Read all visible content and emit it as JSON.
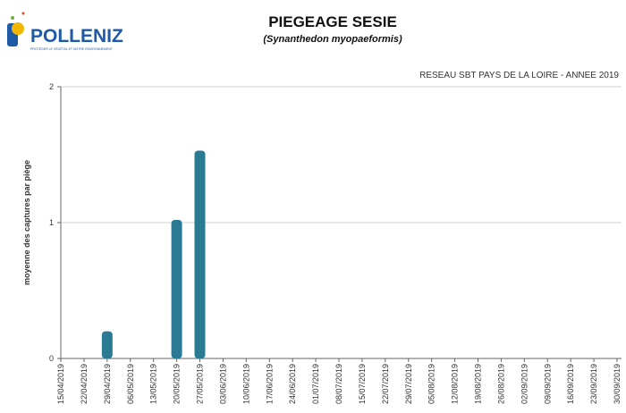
{
  "logo": {
    "name": "POLLENIZ",
    "tagline": "PROTÉGER LE VÉGÉTAL ET NOTRE ENVIRONNEMENT"
  },
  "chart_data": {
    "type": "bar",
    "title": "PIEGEAGE SESIE",
    "subtitle": "(Synanthedon myopaeformis)",
    "annotation": "RESEAU SBT PAYS DE LA LOIRE - ANNEE 2019",
    "y_label": "moyenne des captures par piège",
    "categories": [
      "15/04/2019",
      "22/04/2019",
      "29/04/2019",
      "06/05/2019",
      "13/05/2019",
      "20/05/2019",
      "27/05/2019",
      "03/06/2019",
      "10/06/2019",
      "17/06/2019",
      "24/06/2019",
      "01/07/2019",
      "08/07/2019",
      "15/07/2019",
      "22/07/2019",
      "29/07/2019",
      "05/08/2019",
      "12/08/2019",
      "19/08/2019",
      "26/08/2019",
      "02/09/2019",
      "09/09/2019",
      "16/09/2019",
      "23/09/2019",
      "30/09/2019"
    ],
    "values": [
      0,
      0,
      0.2,
      0,
      0,
      1.02,
      1.53,
      0,
      0,
      0,
      0,
      0,
      0,
      0,
      0,
      0,
      0,
      0,
      0,
      0,
      0,
      0,
      0,
      0,
      0
    ],
    "color": "#2b7a93",
    "ylim": [
      0,
      2
    ],
    "yticks": [
      0,
      1,
      2
    ],
    "grid": true
  }
}
